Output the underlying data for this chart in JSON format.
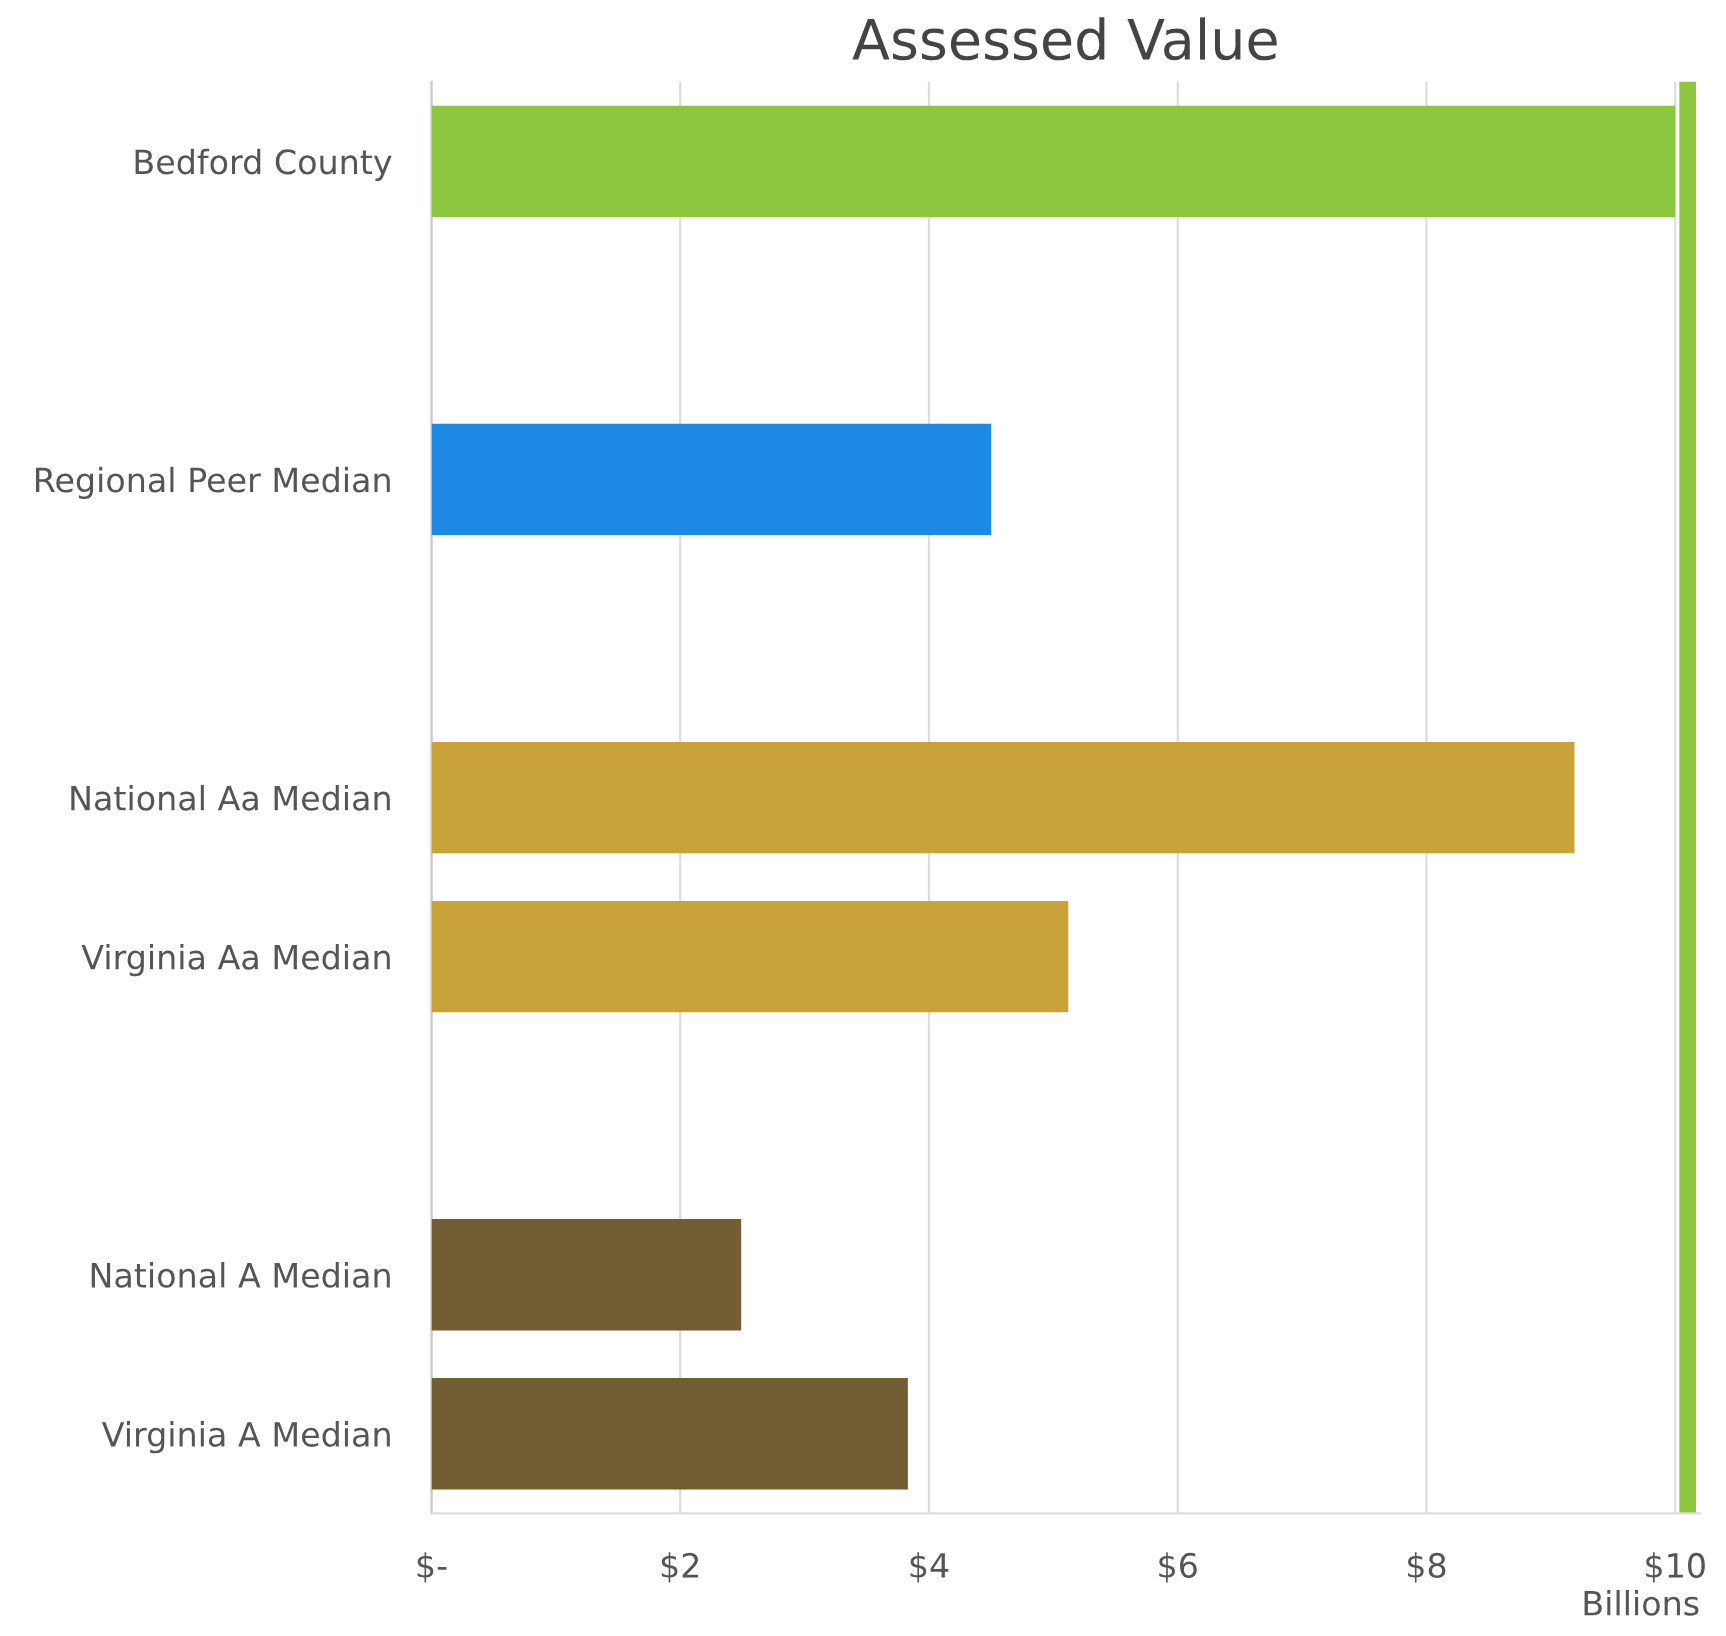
{
  "chart_data": {
    "type": "bar",
    "orientation": "horizontal",
    "title": "Assessed Value",
    "xlabel": "Billions",
    "categories": [
      "Bedford County",
      null,
      "Regional Peer Median",
      null,
      "National Aa Median",
      "Virginia Aa Median",
      null,
      "National A Median",
      "Virginia A Median"
    ],
    "values": [
      10.0,
      null,
      4.5,
      null,
      9.19,
      5.12,
      null,
      2.49,
      3.83
    ],
    "colors": [
      "#8dc63f",
      "#8dc63f",
      "#1e88e5",
      "#1e88e5",
      "#c9a23a",
      "#c9a23a",
      "#735e33",
      "#735e33",
      "#735e33"
    ],
    "xlim": [
      0,
      10.2
    ],
    "xticks": [
      {
        "value": 0,
        "label": "$-"
      },
      {
        "value": 2,
        "label": "$2"
      },
      {
        "value": 4,
        "label": "$4"
      },
      {
        "value": 6,
        "label": "$6"
      },
      {
        "value": 8,
        "label": "$8"
      },
      {
        "value": 10,
        "label": "$10"
      }
    ],
    "ref_lines": [
      {
        "axis": "x",
        "value": 10.1,
        "color": "#8dc63f"
      }
    ],
    "grid": "x",
    "legend": false
  }
}
